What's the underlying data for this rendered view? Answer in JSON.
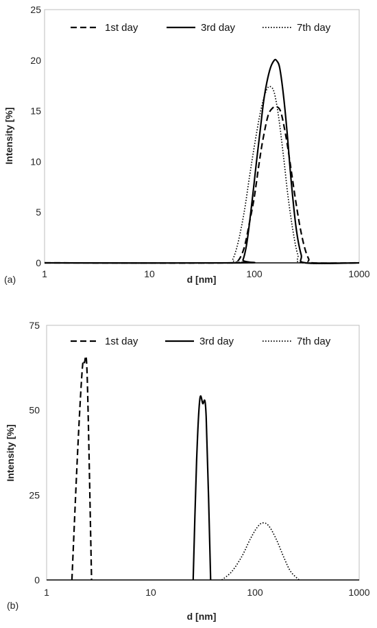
{
  "chart_data": [
    {
      "type": "line",
      "panel_label": "(a)",
      "xlabel": "d [nm]",
      "ylabel": "Intensity [%]",
      "xscale": "log",
      "xlim": [
        1,
        1000
      ],
      "ylim": [
        0,
        25
      ],
      "x_ticks": [
        "1",
        "10",
        "100",
        "1000"
      ],
      "y_ticks": [
        "0",
        "5",
        "10",
        "15",
        "20",
        "25"
      ],
      "grid": false,
      "legend_position": "top",
      "series": [
        {
          "name": "1st day",
          "style": "dashed",
          "x": [
            1,
            60,
            70,
            80,
            90,
            100,
            110,
            120,
            135,
            150,
            165,
            180,
            200,
            220,
            245,
            270,
            300,
            330,
            360,
            1000
          ],
          "y": [
            0,
            0,
            0.2,
            1.5,
            4,
            6.5,
            9.5,
            12,
            14.5,
            15.3,
            15.4,
            14.8,
            12.5,
            9.8,
            6.5,
            3.8,
            1.6,
            0.4,
            0,
            0
          ]
        },
        {
          "name": "3rd day",
          "style": "solid",
          "x": [
            1,
            72,
            78,
            85,
            95,
            105,
            115,
            125,
            140,
            155,
            165,
            175,
            190,
            205,
            225,
            250,
            280,
            310,
            1000
          ],
          "y": [
            0,
            0,
            0.3,
            2,
            6,
            10,
            13.5,
            16.5,
            19,
            20,
            19.9,
            19.2,
            16.5,
            13,
            8,
            3.5,
            0.8,
            0,
            0
          ]
        },
        {
          "name": "7th day",
          "style": "dotted",
          "x": [
            1,
            55,
            62,
            70,
            80,
            90,
            100,
            115,
            130,
            142,
            155,
            170,
            190,
            210,
            235,
            260,
            290,
            1000
          ],
          "y": [
            0,
            0,
            0.3,
            2,
            5,
            8.5,
            11.5,
            15,
            17,
            17.4,
            16.8,
            14.5,
            10.5,
            6.5,
            3,
            0.8,
            0,
            0
          ]
        }
      ]
    },
    {
      "type": "line",
      "panel_label": "(b)",
      "xlabel": "d [nm]",
      "ylabel": "Intensity [%]",
      "xscale": "log",
      "xlim": [
        1,
        1000
      ],
      "ylim": [
        0,
        75
      ],
      "x_ticks": [
        "1",
        "10",
        "100",
        "1000"
      ],
      "y_ticks": [
        "0",
        "25",
        "50",
        "75"
      ],
      "grid": false,
      "legend_position": "top",
      "series": [
        {
          "name": "1st day",
          "style": "dashed",
          "x": [
            1.75,
            2.0,
            2.2,
            2.3,
            2.45,
            2.7
          ],
          "y": [
            0,
            40,
            62,
            64,
            60,
            0
          ]
        },
        {
          "name": "3rd day",
          "style": "solid",
          "x": [
            25.5,
            27.5,
            29.5,
            31.5,
            34,
            37.5
          ],
          "y": [
            0,
            35,
            53,
            52,
            48,
            0
          ]
        },
        {
          "name": "7th day",
          "style": "dotted",
          "x": [
            48,
            60,
            75,
            90,
            105,
            118,
            135,
            160,
            190,
            220,
            265
          ],
          "y": [
            0,
            2.5,
            7,
            12,
            15.5,
            16.8,
            16,
            12,
            6.5,
            2.5,
            0
          ]
        }
      ]
    }
  ]
}
